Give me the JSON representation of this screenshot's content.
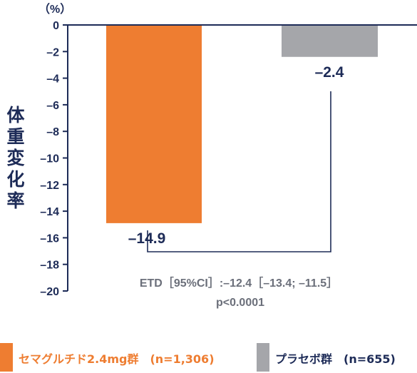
{
  "chart_data": {
    "type": "bar",
    "categories": [
      "セマグルチド2.4mg群（n=1,306）",
      "プラセボ群（n=655）"
    ],
    "values": [
      -14.9,
      -2.4
    ],
    "value_labels": [
      "–14.9",
      "–2.4"
    ],
    "ylabel": "体重変化率",
    "yunit": "（%）",
    "ylim": [
      -20,
      0
    ],
    "yticks": [
      0,
      -2,
      -4,
      -6,
      -8,
      -10,
      -12,
      -14,
      -16,
      -18,
      -20
    ],
    "ytick_labels": [
      "0",
      "–2",
      "–4",
      "–6",
      "–8",
      "–10",
      "–12",
      "–14",
      "–16",
      "–18",
      "–20"
    ],
    "colors": [
      "#ee7d31",
      "#a5a6aa"
    ],
    "annotation": {
      "line1": "ETD［95%CI］:–12.4［–13.4; –11.5］",
      "line2": "p<0.0001"
    },
    "legend": [
      {
        "label": "セマグルチド2.4mg群　(n=1,306)",
        "color": "#ee7d31",
        "text_color": "#ee7d31"
      },
      {
        "label": "プラセボ群　(n=655)",
        "color": "#a5a6aa",
        "text_color": "#1d2b57"
      }
    ],
    "grid": false,
    "legend_position": "bottom"
  }
}
